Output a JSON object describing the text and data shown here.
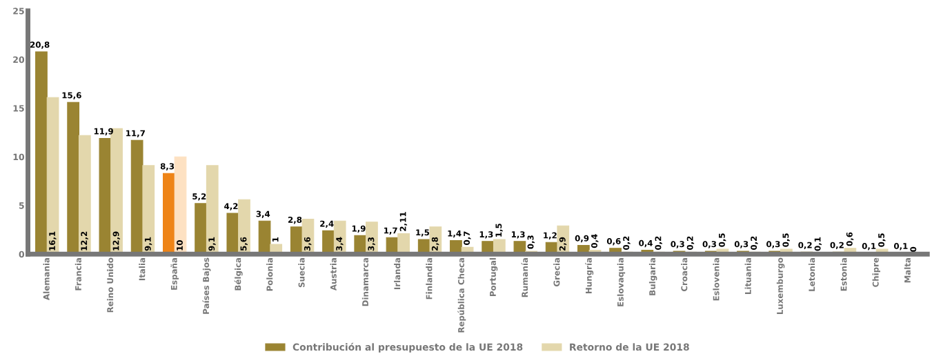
{
  "chart_data": {
    "type": "bar",
    "categories": [
      "Alemania",
      "Francia",
      "Reino Unido",
      "Italia",
      "España",
      "Países Bajos",
      "Bélgica",
      "Polonia",
      "Suecia",
      "Austria",
      "Dinamarca",
      "Irlanda",
      "Finlandia",
      "República Checa",
      "Portugal",
      "Rumanía",
      "Grecia",
      "Hungría",
      "Eslovaquia",
      "Bulgaria",
      "Croacia",
      "Eslovenia",
      "Lituania",
      "Luxemburgo",
      "Letonia",
      "Estonia",
      "Chipre",
      "Malta"
    ],
    "series": [
      {
        "name": "Contribución al presupuesto de la UE 2018",
        "color": "#9a8432",
        "colors": [
          "#9a8432",
          "#9a8432",
          "#9a8432",
          "#9a8432",
          "#ee8417",
          "#9a8432",
          "#9a8432",
          "#9a8432",
          "#9a8432",
          "#9a8432",
          "#9a8432",
          "#9a8432",
          "#9a8432",
          "#9a8432",
          "#9a8432",
          "#9a8432",
          "#9a8432",
          "#9a8432",
          "#9a8432",
          "#9a8432",
          "#9a8432",
          "#9a8432",
          "#9a8432",
          "#9a8432",
          "#9a8432",
          "#9a8432",
          "#9a8432",
          "#9a8432"
        ],
        "values": [
          20.8,
          15.6,
          11.9,
          11.7,
          8.3,
          5.2,
          4.2,
          3.4,
          2.8,
          2.4,
          1.9,
          1.7,
          1.5,
          1.4,
          1.3,
          1.3,
          1.2,
          0.9,
          0.6,
          0.4,
          0.3,
          0.3,
          0.3,
          0.3,
          0.2,
          0.2,
          0.1,
          0.1
        ],
        "value_labels": [
          "20,8",
          "15,6",
          "11,9",
          "11,7",
          "8,3",
          "5,2",
          "4,2",
          "3,4",
          "2,8",
          "2,4",
          "1,9",
          "1,7",
          "1,5",
          "1,4",
          "1,3",
          "1,3",
          "1,2",
          "0,9",
          "0,6",
          "0,4",
          "0,3",
          "0,3",
          "0,3",
          "0,3",
          "0,2",
          "0,2",
          "0,1",
          "0,1"
        ]
      },
      {
        "name": "Retorno de la UE 2018",
        "color": "#e3d7ac",
        "colors": [
          "#e3d7ac",
          "#e3d7ac",
          "#e3d7ac",
          "#e3d7ac",
          "#fde1c2",
          "#e3d7ac",
          "#e3d7ac",
          "#e3d7ac",
          "#e3d7ac",
          "#e3d7ac",
          "#e3d7ac",
          "#e3d7ac",
          "#e3d7ac",
          "#e3d7ac",
          "#e3d7ac",
          "#e3d7ac",
          "#e3d7ac",
          "#e3d7ac",
          "#e3d7ac",
          "#e3d7ac",
          "#e3d7ac",
          "#e3d7ac",
          "#e3d7ac",
          "#e3d7ac",
          "#e3d7ac",
          "#e3d7ac",
          "#e3d7ac",
          "#e3d7ac"
        ],
        "values": [
          16.1,
          12.2,
          12.9,
          9.1,
          10,
          9.1,
          5.6,
          1,
          3.6,
          3.4,
          3.3,
          2.11,
          2.8,
          0.7,
          1.5,
          0.3,
          2.9,
          0.4,
          0.2,
          0.2,
          0.2,
          0.5,
          0.2,
          0.5,
          0.1,
          0.6,
          0.5,
          0
        ],
        "value_labels": [
          "16,1",
          "12,2",
          "12,9",
          "9,1",
          "10",
          "9,1",
          "5,6",
          "1",
          "3,6",
          "3,4",
          "3,3",
          "2,11",
          "2,8",
          "0,7",
          "1,5",
          "0,3",
          "2,9",
          "0,4",
          "0,2",
          "0,2",
          "0,2",
          "0,5",
          "0,2",
          "0,5",
          "0,1",
          "0,6",
          "0,5",
          "0"
        ]
      }
    ],
    "ylim": [
      0,
      25
    ],
    "yticks": [
      0,
      5,
      10,
      15,
      20,
      25
    ],
    "grid": false,
    "legend": "bottom"
  }
}
